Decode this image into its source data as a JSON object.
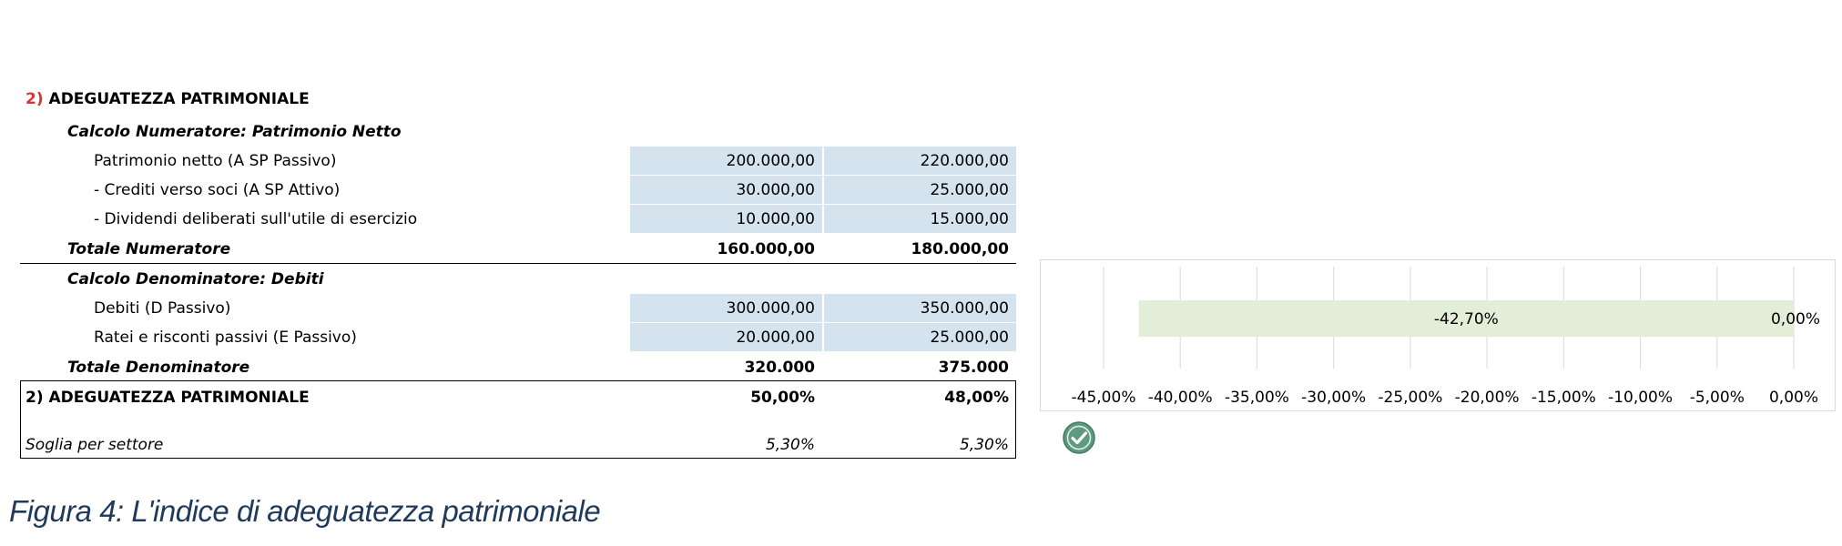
{
  "section": {
    "number": "2)",
    "title": "ADEGUATEZZA PATRIMONIALE"
  },
  "numeratore": {
    "heading": "Calcolo Numeratore: Patrimonio Netto",
    "rows": [
      {
        "label": "Patrimonio netto (A SP Passivo)",
        "v1": "200.000,00",
        "v2": "220.000,00"
      },
      {
        "label": "- Crediti verso soci (A SP Attivo)",
        "v1": "30.000,00",
        "v2": "25.000,00"
      },
      {
        "label": "- Dividendi deliberati sull'utile di esercizio",
        "v1": "10.000,00",
        "v2": "15.000,00"
      }
    ],
    "total": {
      "label": "Totale Numeratore",
      "v1": "160.000,00",
      "v2": "180.000,00"
    }
  },
  "denominatore": {
    "heading": "Calcolo Denominatore: Debiti",
    "rows": [
      {
        "label": "Debiti (D Passivo)",
        "v1": "300.000,00",
        "v2": "350.000,00"
      },
      {
        "label": "Ratei e risconti passivi (E Passivo)",
        "v1": "20.000,00",
        "v2": "25.000,00"
      }
    ],
    "total": {
      "label": "Totale Denominatore",
      "v1": "320.000",
      "v2": "375.000"
    }
  },
  "result": {
    "label": "2) ADEGUATEZZA PATRIMONIALE",
    "v1": "50,00%",
    "v2": "48,00%"
  },
  "threshold": {
    "label": "Soglia per settore",
    "v1": "5,30%",
    "v2": "5,30%"
  },
  "chart_data": {
    "type": "bar",
    "orientation": "horizontal",
    "categories": [
      ""
    ],
    "series": [
      {
        "values": [
          -42.7
        ],
        "labels": [
          "-42,70%"
        ]
      },
      {
        "values": [
          0.0
        ],
        "labels": [
          "0,00%"
        ]
      }
    ],
    "xlim": [
      -45,
      0
    ],
    "tick_labels": [
      "-45,00%",
      "-40,00%",
      "-35,00%",
      "-30,00%",
      "-25,00%",
      "-20,00%",
      "-15,00%",
      "-10,00%",
      "-5,00%",
      "0,00%"
    ],
    "grid": true,
    "colors": {
      "bar": "#e2eed8",
      "grid": "#d9d9d9"
    }
  },
  "status_icon": "check-circle-icon",
  "colors": {
    "accent": "#e0312e",
    "cell_fill": "#d5e3ee",
    "check": "#5e9a82",
    "caption": "#1f3a5a"
  },
  "caption": "Figura 4: L'indice di adeguatezza patrimoniale"
}
